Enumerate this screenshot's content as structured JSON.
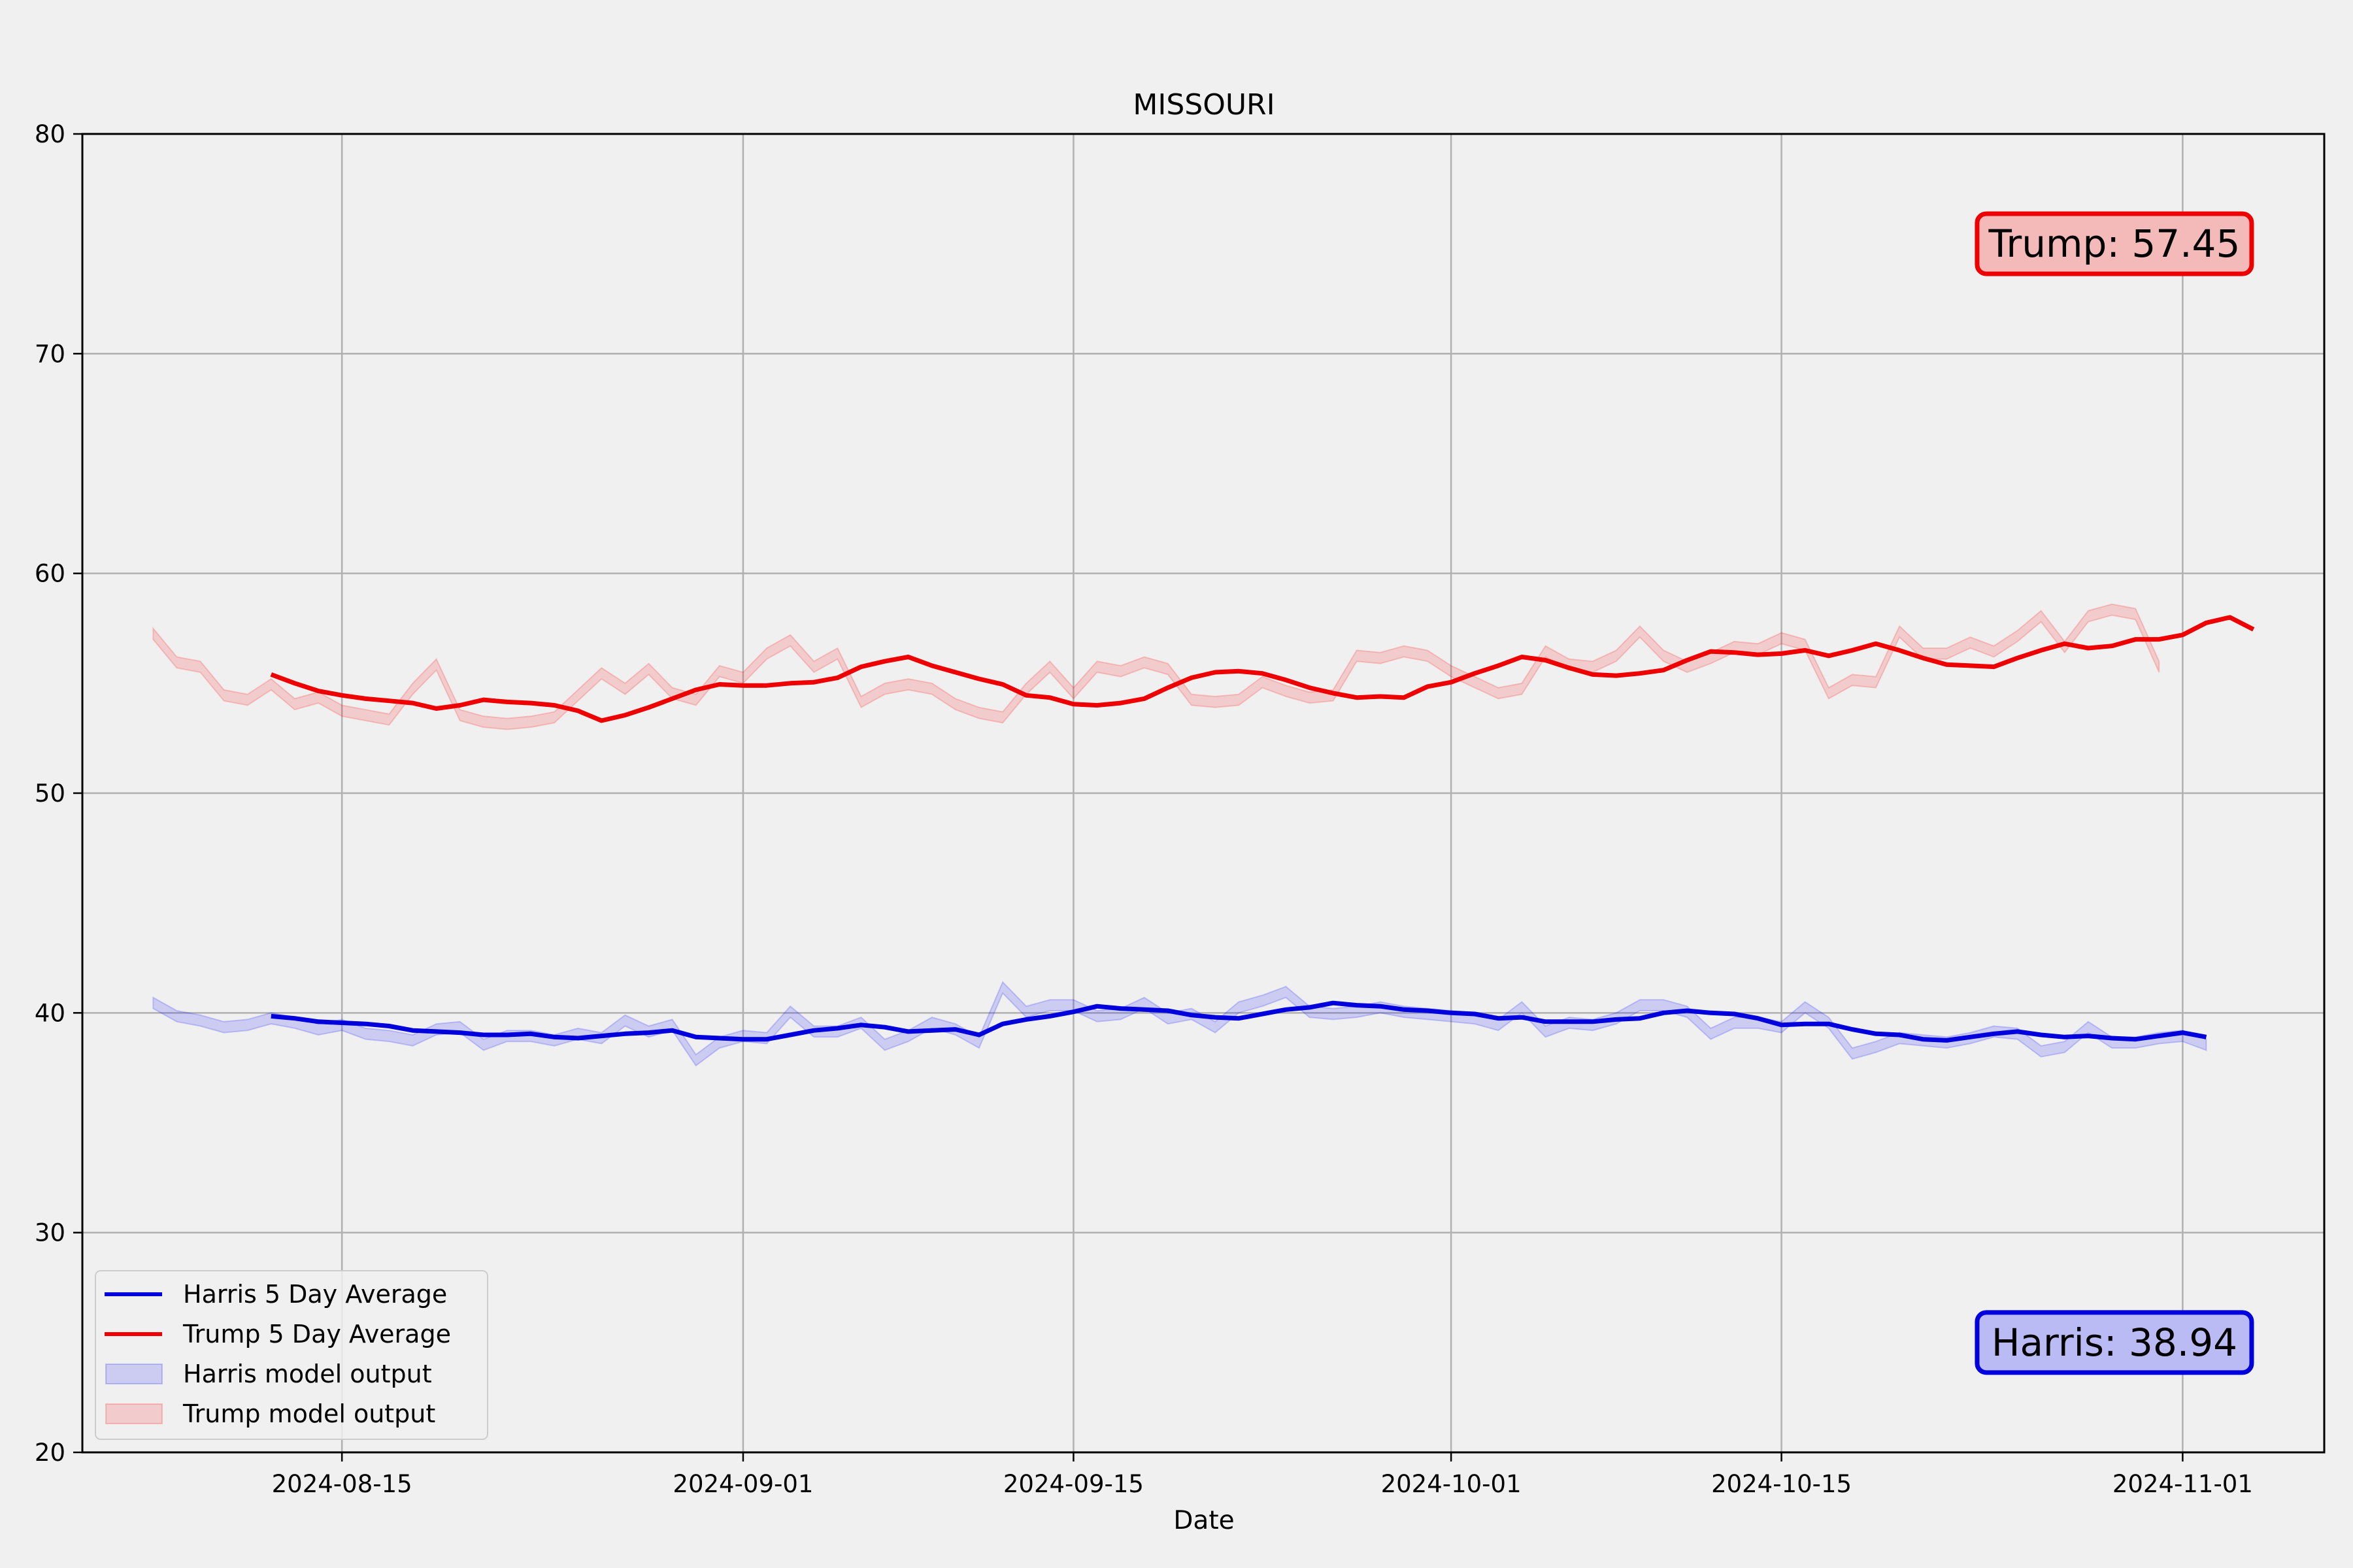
{
  "chart_data": {
    "type": "line",
    "title": "MISSOURI",
    "xlabel": "Date",
    "ylabel": "",
    "ylim": [
      20,
      80
    ],
    "xlim": [
      "2024-08-04",
      "2024-11-07"
    ],
    "grid": true,
    "legend_position": "lower-left",
    "x_ticks": [
      "2024-08-15",
      "2024-09-01",
      "2024-09-15",
      "2024-10-01",
      "2024-10-15",
      "2024-11-01"
    ],
    "y_ticks": [
      20,
      30,
      40,
      50,
      60,
      70,
      80
    ],
    "series": [
      {
        "name": "Harris 5 Day Average",
        "kind": "line",
        "color": "#0000dd",
        "start_date": "2024-08-12",
        "values": [
          39.85,
          39.75,
          39.6,
          39.55,
          39.5,
          39.4,
          39.2,
          39.15,
          39.1,
          39.0,
          39.0,
          39.05,
          38.9,
          38.85,
          38.95,
          39.05,
          39.1,
          39.2,
          38.9,
          38.85,
          38.8,
          38.8,
          39.0,
          39.2,
          39.3,
          39.45,
          39.35,
          39.15,
          39.2,
          39.25,
          39.0,
          39.5,
          39.7,
          39.85,
          40.05,
          40.3,
          40.2,
          40.15,
          40.1,
          39.9,
          39.8,
          39.75,
          39.95,
          40.15,
          40.25,
          40.45,
          40.35,
          40.3,
          40.15,
          40.1,
          40.0,
          39.95,
          39.75,
          39.8,
          39.6,
          39.6,
          39.6,
          39.7,
          39.75,
          40.0,
          40.1,
          40.0,
          39.95,
          39.75,
          39.45,
          39.5,
          39.5,
          39.25,
          39.05,
          39.0,
          38.8,
          38.75,
          38.9,
          39.05,
          39.15,
          39.0,
          38.9,
          38.95,
          38.85,
          38.8,
          38.95,
          39.1,
          38.9
        ]
      },
      {
        "name": "Trump 5 Day Average",
        "kind": "line",
        "color": "#ee0000",
        "start_date": "2024-08-12",
        "values": [
          55.4,
          55.0,
          54.65,
          54.45,
          54.3,
          54.2,
          54.1,
          53.85,
          54.0,
          54.25,
          54.15,
          54.1,
          54.0,
          53.75,
          53.3,
          53.55,
          53.9,
          54.3,
          54.7,
          54.95,
          54.9,
          54.9,
          55.0,
          55.05,
          55.25,
          55.75,
          56.0,
          56.2,
          55.8,
          55.5,
          55.2,
          54.95,
          54.45,
          54.35,
          54.05,
          54.0,
          54.1,
          54.3,
          54.8,
          55.25,
          55.5,
          55.55,
          55.45,
          55.15,
          54.8,
          54.55,
          54.35,
          54.4,
          54.35,
          54.85,
          55.05,
          55.45,
          55.8,
          56.2,
          56.05,
          55.7,
          55.4,
          55.35,
          55.45,
          55.6,
          56.05,
          56.45,
          56.4,
          56.3,
          56.35,
          56.5,
          56.25,
          56.5,
          56.8,
          56.5,
          56.15,
          55.85,
          55.8,
          55.75,
          56.15,
          56.5,
          56.8,
          56.6,
          56.7,
          57.0,
          57.0,
          57.2,
          57.75,
          58.0,
          57.45
        ]
      },
      {
        "name": "Harris model output",
        "kind": "band",
        "color": "#0000ff",
        "start_date": "2024-08-07",
        "upper": [
          40.7,
          40.1,
          39.9,
          39.6,
          39.7,
          40.0,
          39.8,
          39.5,
          39.7,
          39.3,
          39.2,
          39.0,
          39.5,
          39.6,
          38.8,
          39.2,
          39.2,
          39.0,
          39.3,
          39.1,
          39.9,
          39.4,
          39.7,
          38.1,
          38.9,
          39.2,
          39.1,
          40.3,
          39.4,
          39.4,
          39.8,
          38.8,
          39.2,
          39.8,
          39.5,
          38.9,
          41.4,
          40.3,
          40.6,
          40.6,
          40.1,
          40.2,
          40.7,
          40.0,
          40.2,
          39.6,
          40.5,
          40.8,
          41.2,
          40.3,
          40.2,
          40.3,
          40.5,
          40.3,
          40.2,
          40.1,
          40.0,
          39.7,
          40.5,
          39.4,
          39.8,
          39.7,
          40.0,
          40.6,
          40.6,
          40.3,
          39.3,
          39.8,
          39.8,
          39.6,
          40.5,
          39.8,
          38.4,
          38.7,
          39.1,
          39.0,
          38.9,
          39.1,
          39.4,
          39.3,
          38.5,
          38.7,
          39.6,
          38.9,
          38.9,
          39.1,
          39.2,
          38.8
        ]
      },
      {
        "name": "Trump model output",
        "kind": "band",
        "color": "#ff0000",
        "start_date": "2024-08-07",
        "upper": [
          57.5,
          56.2,
          56.0,
          54.7,
          54.5,
          55.2,
          54.3,
          54.6,
          54.0,
          53.8,
          53.6,
          55.0,
          56.1,
          53.8,
          53.5,
          53.4,
          53.5,
          53.7,
          54.7,
          55.7,
          55.0,
          55.9,
          54.8,
          54.5,
          55.8,
          55.5,
          56.6,
          57.2,
          56.0,
          56.6,
          54.4,
          55.0,
          55.2,
          55.0,
          54.3,
          53.9,
          53.7,
          55.0,
          56.0,
          54.8,
          56.0,
          55.8,
          56.2,
          55.9,
          54.5,
          54.4,
          54.5,
          55.3,
          54.9,
          54.6,
          54.7,
          56.5,
          56.4,
          56.7,
          56.5,
          55.8,
          55.3,
          54.8,
          55.0,
          56.7,
          56.1,
          56.0,
          56.5,
          57.6,
          56.5,
          56.0,
          56.4,
          56.9,
          56.8,
          57.3,
          57.0,
          54.8,
          55.4,
          55.3,
          57.6,
          56.6,
          56.6,
          57.1,
          56.7,
          57.4,
          58.3,
          56.9,
          58.3,
          58.6,
          58.4,
          56.0
        ]
      }
    ],
    "annotations": [
      {
        "name": "trump-annotation",
        "text": "Trump: 57.45",
        "x": "2024-10-28",
        "y": 75,
        "face_color": "#f4baba",
        "edge_color": "#ee0000"
      },
      {
        "name": "harris-annotation",
        "text": "Harris: 38.94",
        "x": "2024-10-28",
        "y": 25,
        "face_color": "#babaf4",
        "edge_color": "#0000dd"
      }
    ]
  }
}
